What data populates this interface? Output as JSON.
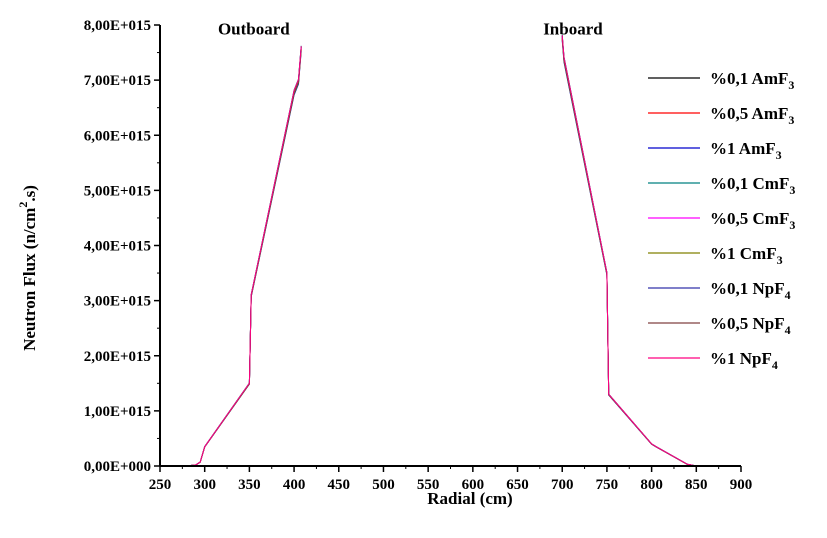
{
  "chart_data": {
    "type": "line",
    "xlabel": "Radial (cm)",
    "ylabel_main": "Neutron Flux  (n/cm",
    "ylabel_sup": "2",
    "ylabel_tail": ".s)",
    "xlim": [
      250,
      900
    ],
    "ylim": [
      0,
      8000000000000000.0
    ],
    "x_ticks": [
      250,
      300,
      350,
      400,
      450,
      500,
      550,
      600,
      650,
      700,
      750,
      800,
      850,
      900
    ],
    "x_tick_labels": [
      "250",
      "300",
      "350",
      "400",
      "450",
      "500",
      "550",
      "600",
      "650",
      "700",
      "750",
      "800",
      "850",
      "900"
    ],
    "y_ticks": [
      0,
      1000000000000000.0,
      2000000000000000.0,
      3000000000000000.0,
      4000000000000000.0,
      5000000000000000.0,
      6000000000000000.0,
      7000000000000000.0,
      8000000000000000.0
    ],
    "y_tick_labels": [
      "0,00E+000",
      "1,00E+015",
      "2,00E+015",
      "3,00E+015",
      "4,00E+015",
      "5,00E+015",
      "6,00E+015",
      "7,00E+015",
      "8,00E+015"
    ],
    "annotations": [
      {
        "text": "Outboard",
        "x": 355,
        "y": 7900000000000000.0
      },
      {
        "text": "Inboard",
        "x": 712,
        "y": 7900000000000000.0
      }
    ],
    "grid": false,
    "legend_position": "right",
    "series": [
      {
        "name_main": "%0,1 AmF",
        "name_sub": "3",
        "color": "#000000",
        "scale": 1.0
      },
      {
        "name_main": "%0,5 AmF",
        "name_sub": "3",
        "color": "#ff0000",
        "scale": 0.995
      },
      {
        "name_main": "%1 AmF",
        "name_sub": "3",
        "color": "#0000cc",
        "scale": 0.99
      },
      {
        "name_main": "%0,1 CmF",
        "name_sub": "3",
        "color": "#008080",
        "scale": 1.003
      },
      {
        "name_main": "%0,5 CmF",
        "name_sub": "3",
        "color": "#ff00ff",
        "scale": 0.998
      },
      {
        "name_main": "%1 CmF",
        "name_sub": "3",
        "color": "#808000",
        "scale": 0.993
      },
      {
        "name_main": "%0,1 NpF",
        "name_sub": "4",
        "color": "#3333aa",
        "scale": 1.001
      },
      {
        "name_main": "%0,5 NpF",
        "name_sub": "4",
        "color": "#804040",
        "scale": 0.996
      },
      {
        "name_main": "%1 NpF",
        "name_sub": "4",
        "color": "#ff0080",
        "scale": 1.002
      }
    ],
    "outboard_x": [
      270,
      280,
      290,
      295,
      300,
      350,
      352,
      400,
      405,
      408
    ],
    "outboard_y": [
      0,
      0,
      20000000000000.0,
      70000000000000.0,
      350000000000000.0,
      1500000000000000.0,
      3100000000000000.0,
      6800000000000000.0,
      7000000000000000.0,
      7600000000000000.0
    ],
    "inboard_x": [
      700,
      702,
      750,
      752,
      800,
      805,
      840,
      850,
      870
    ],
    "inboard_y": [
      7800000000000000.0,
      7400000000000000.0,
      3500000000000000.0,
      1300000000000000.0,
      400000000000000.0,
      350000000000000.0,
      30000000000000.0,
      0,
      0
    ]
  }
}
